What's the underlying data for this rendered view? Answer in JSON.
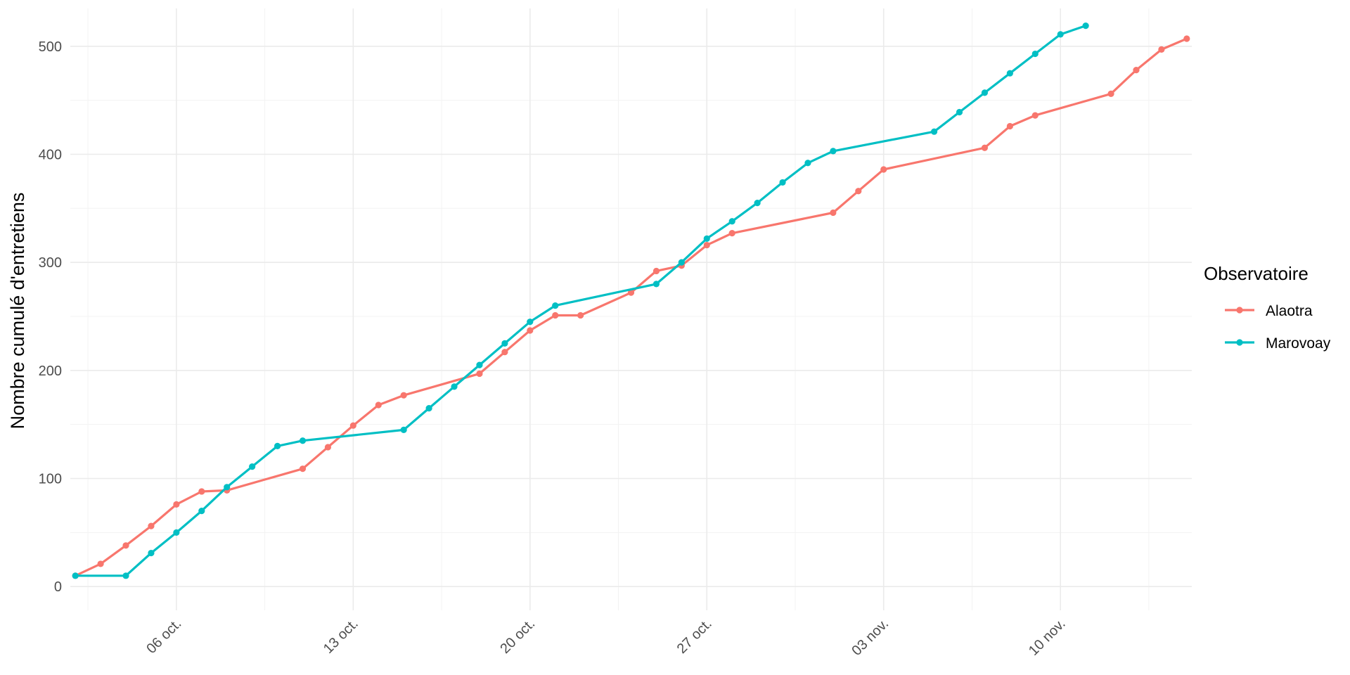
{
  "chart_data": {
    "type": "line",
    "title": "",
    "xlabel": "",
    "ylabel": "Nombre cumulé d'entretiens",
    "x_type": "date",
    "x_range": [
      "2024-10-02",
      "2024-11-14"
    ],
    "ylim": [
      -22,
      535
    ],
    "x_ticks": [
      {
        "date": "2024-10-06",
        "label": "06 oct."
      },
      {
        "date": "2024-10-13",
        "label": "13 oct."
      },
      {
        "date": "2024-10-20",
        "label": "20 oct."
      },
      {
        "date": "2024-10-27",
        "label": "27 oct."
      },
      {
        "date": "2024-11-03",
        "label": "03 nov."
      },
      {
        "date": "2024-11-10",
        "label": "10 nov."
      }
    ],
    "y_ticks": [
      0,
      100,
      200,
      300,
      400,
      500
    ],
    "grid": true,
    "legend": {
      "title": "Observatoire",
      "position": "right"
    },
    "series": [
      {
        "name": "Alaotra",
        "color": "#F8766D",
        "points": [
          [
            "2024-10-02",
            10
          ],
          [
            "2024-10-03",
            21
          ],
          [
            "2024-10-04",
            38
          ],
          [
            "2024-10-05",
            56
          ],
          [
            "2024-10-06",
            76
          ],
          [
            "2024-10-07",
            88
          ],
          [
            "2024-10-08",
            89
          ],
          [
            "2024-10-11",
            109
          ],
          [
            "2024-10-12",
            129
          ],
          [
            "2024-10-13",
            149
          ],
          [
            "2024-10-14",
            168
          ],
          [
            "2024-10-15",
            177
          ],
          [
            "2024-10-18",
            197
          ],
          [
            "2024-10-19",
            217
          ],
          [
            "2024-10-20",
            237
          ],
          [
            "2024-10-21",
            251
          ],
          [
            "2024-10-22",
            251
          ],
          [
            "2024-10-24",
            272
          ],
          [
            "2024-10-25",
            292
          ],
          [
            "2024-10-26",
            297
          ],
          [
            "2024-10-27",
            316
          ],
          [
            "2024-10-28",
            327
          ],
          [
            "2024-11-01",
            346
          ],
          [
            "2024-11-02",
            366
          ],
          [
            "2024-11-03",
            386
          ],
          [
            "2024-11-07",
            406
          ],
          [
            "2024-11-08",
            426
          ],
          [
            "2024-11-09",
            436
          ],
          [
            "2024-11-12",
            456
          ],
          [
            "2024-11-13",
            478
          ],
          [
            "2024-11-14",
            497
          ],
          [
            "2024-11-15",
            507
          ]
        ]
      },
      {
        "name": "Marovoay",
        "color": "#00BFC4",
        "points": [
          [
            "2024-10-02",
            10
          ],
          [
            "2024-10-04",
            10
          ],
          [
            "2024-10-05",
            31
          ],
          [
            "2024-10-06",
            50
          ],
          [
            "2024-10-07",
            70
          ],
          [
            "2024-10-08",
            92
          ],
          [
            "2024-10-09",
            111
          ],
          [
            "2024-10-10",
            130
          ],
          [
            "2024-10-11",
            135
          ],
          [
            "2024-10-15",
            145
          ],
          [
            "2024-10-16",
            165
          ],
          [
            "2024-10-17",
            185
          ],
          [
            "2024-10-18",
            205
          ],
          [
            "2024-10-19",
            225
          ],
          [
            "2024-10-20",
            245
          ],
          [
            "2024-10-21",
            260
          ],
          [
            "2024-10-25",
            280
          ],
          [
            "2024-10-26",
            300
          ],
          [
            "2024-10-27",
            322
          ],
          [
            "2024-10-28",
            338
          ],
          [
            "2024-10-29",
            355
          ],
          [
            "2024-10-30",
            374
          ],
          [
            "2024-10-31",
            392
          ],
          [
            "2024-11-01",
            403
          ],
          [
            "2024-11-05",
            421
          ],
          [
            "2024-11-06",
            439
          ],
          [
            "2024-11-07",
            457
          ],
          [
            "2024-11-08",
            475
          ],
          [
            "2024-11-09",
            493
          ],
          [
            "2024-11-10",
            511
          ],
          [
            "2024-11-11",
            519
          ]
        ]
      }
    ]
  }
}
